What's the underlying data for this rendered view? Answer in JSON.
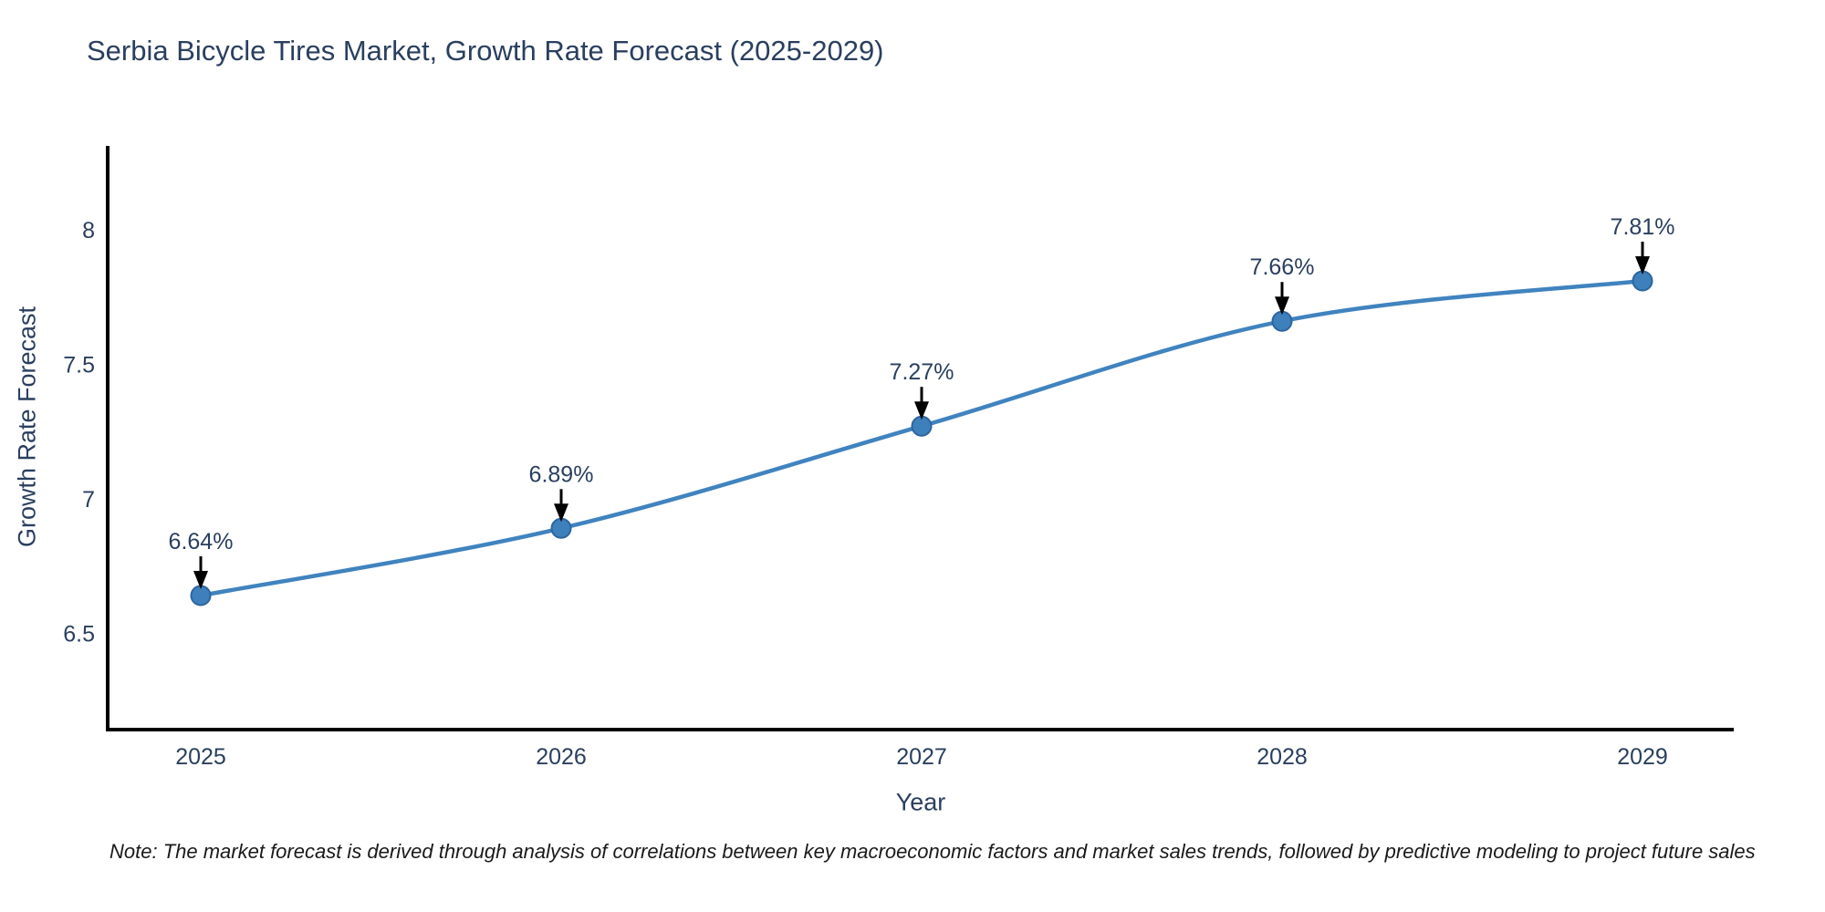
{
  "note": "Note: The market forecast is derived through analysis of correlations between key macroeconomic factors and market sales trends, followed by predictive modeling to project future sales",
  "colors": {
    "line": "#4083bf",
    "marker_fill": "#3d80bc",
    "marker_edge": "#2d659e",
    "axis": "#000000",
    "text": "#2a3f5f",
    "annotation_text": "#2a3f5f",
    "arrow": "#000000",
    "note_text": "#1a1a1a",
    "background": "#ffffff"
  },
  "chart_data": {
    "type": "line",
    "title": "Serbia Bicycle Tires Market, Growth Rate Forecast (2025-2029)",
    "x": [
      2025,
      2026,
      2027,
      2028,
      2029
    ],
    "values": [
      6.64,
      6.89,
      7.27,
      7.66,
      7.81
    ],
    "point_labels": [
      "6.64%",
      "6.89%",
      "7.27%",
      "7.66%",
      "7.81%"
    ],
    "series_name": "Growth Rate Forecast",
    "xlabel": "Year",
    "ylabel": "Growth Rate Forecast",
    "x_tick_labels": [
      "2025",
      "2026",
      "2027",
      "2028",
      "2029"
    ],
    "y_ticks": [
      6.5,
      7,
      7.5,
      8
    ],
    "y_tick_labels": [
      "6.5",
      "7",
      "7.5",
      "8"
    ],
    "xlim": [
      2024.74,
      2029.25
    ],
    "ylim": [
      6.14,
      8.31
    ],
    "grid": false,
    "legend_position": "none",
    "line_shape": "spline",
    "annotation_style": "value-label-with-down-arrow"
  }
}
